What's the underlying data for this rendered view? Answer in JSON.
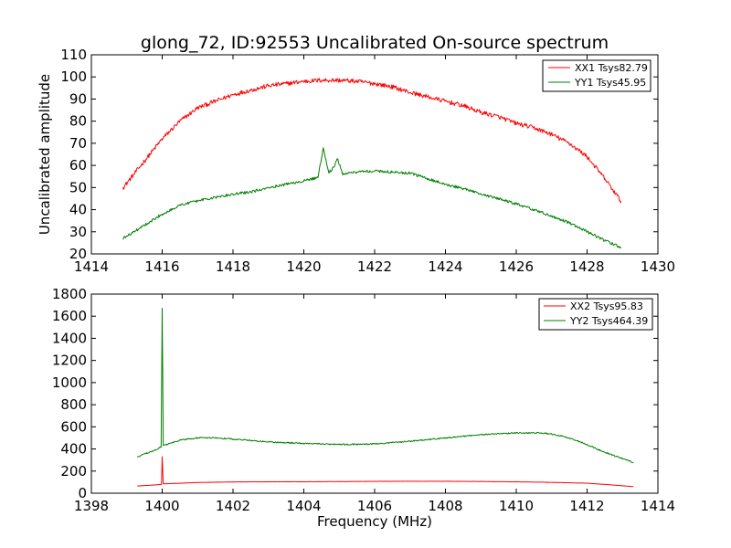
{
  "figure": {
    "title": "glong_72, ID:92553 Uncalibrated On-source spectrum",
    "ylabel": "Uncalibrated amplitude",
    "xlabel": "Frequency (MHz)"
  },
  "colors": {
    "red": "#ff0000",
    "green": "#008000"
  },
  "chart_data": [
    {
      "type": "line",
      "title": "glong_72, ID:92553 Uncalibrated On-source spectrum",
      "xlabel": "",
      "ylabel": "Uncalibrated amplitude",
      "xlim": [
        1414,
        1430
      ],
      "ylim": [
        20,
        110
      ],
      "xticks": [
        1414,
        1416,
        1418,
        1420,
        1422,
        1424,
        1426,
        1428,
        1430
      ],
      "yticks": [
        20,
        30,
        40,
        50,
        60,
        70,
        80,
        90,
        100,
        110
      ],
      "legend_position": "top-right",
      "grid": false,
      "series": [
        {
          "name": "XX1 Tsys82.79",
          "color": "#ff0000",
          "noise": 1.0,
          "x": [
            1414.9,
            1415.5,
            1416.0,
            1416.5,
            1417.0,
            1417.5,
            1418.0,
            1418.5,
            1419.0,
            1419.5,
            1420.0,
            1420.5,
            1421.0,
            1421.5,
            1422.0,
            1422.5,
            1423.0,
            1423.5,
            1424.0,
            1424.5,
            1425.0,
            1425.5,
            1426.0,
            1426.5,
            1427.0,
            1427.5,
            1428.0,
            1428.5,
            1428.95
          ],
          "y": [
            50,
            62,
            72,
            80,
            86,
            89,
            92,
            94,
            96,
            97,
            98,
            98.5,
            98.5,
            98,
            97,
            95.5,
            93,
            91,
            89,
            87,
            84,
            82,
            79,
            77,
            74,
            70,
            64,
            54,
            44
          ]
        },
        {
          "name": "YY1 Tsys45.95",
          "color": "#008000",
          "noise": 0.6,
          "x": [
            1414.9,
            1415.5,
            1416.0,
            1416.5,
            1417.0,
            1417.5,
            1418.0,
            1418.5,
            1419.0,
            1419.5,
            1420.0,
            1420.4,
            1420.55,
            1420.7,
            1420.8,
            1420.95,
            1421.1,
            1421.5,
            1422.0,
            1422.5,
            1423.0,
            1423.5,
            1424.0,
            1424.5,
            1425.0,
            1425.5,
            1426.0,
            1426.5,
            1427.0,
            1427.5,
            1428.0,
            1428.5,
            1428.95
          ],
          "y": [
            27,
            33,
            38,
            42,
            44,
            45.5,
            47,
            48,
            50,
            51.5,
            53,
            54.5,
            68,
            57,
            58,
            63,
            56,
            57,
            57.5,
            57,
            56.5,
            54,
            51.5,
            49.5,
            47,
            45,
            42.5,
            40,
            37,
            34,
            30,
            26,
            23
          ]
        }
      ]
    },
    {
      "type": "line",
      "title": "",
      "xlabel": "Frequency (MHz)",
      "ylabel": "",
      "xlim": [
        1398,
        1414
      ],
      "ylim": [
        0,
        1800
      ],
      "xticks": [
        1398,
        1400,
        1402,
        1404,
        1406,
        1408,
        1410,
        1412,
        1414
      ],
      "yticks": [
        0,
        200,
        400,
        600,
        800,
        1000,
        1200,
        1400,
        1600,
        1800
      ],
      "legend_position": "top-right",
      "grid": false,
      "series": [
        {
          "name": "XX2 Tsys95.83",
          "color": "#ff0000",
          "noise": 1.0,
          "x": [
            1399.3,
            1399.8,
            1399.98,
            1400.0,
            1400.03,
            1400.5,
            1401.0,
            1402.0,
            1403.0,
            1404.0,
            1405.0,
            1406.0,
            1407.0,
            1408.0,
            1409.0,
            1410.0,
            1411.0,
            1412.0,
            1412.5,
            1413.3
          ],
          "y": [
            65,
            75,
            80,
            330,
            85,
            90,
            97,
            102,
            103,
            104,
            105,
            107,
            108,
            108,
            106,
            103,
            98,
            90,
            80,
            60
          ]
        },
        {
          "name": "YY2 Tsys464.39",
          "color": "#008000",
          "noise": 6,
          "x": [
            1399.3,
            1399.8,
            1399.97,
            1400.0,
            1400.03,
            1400.5,
            1401.0,
            1401.5,
            1402.0,
            1403.0,
            1404.0,
            1405.0,
            1406.0,
            1407.0,
            1408.0,
            1409.0,
            1410.0,
            1410.7,
            1411.0,
            1411.5,
            1412.0,
            1412.5,
            1413.3
          ],
          "y": [
            330,
            390,
            420,
            1670,
            430,
            480,
            500,
            500,
            490,
            465,
            450,
            440,
            445,
            470,
            500,
            530,
            545,
            545,
            535,
            500,
            440,
            370,
            280
          ]
        }
      ]
    }
  ]
}
